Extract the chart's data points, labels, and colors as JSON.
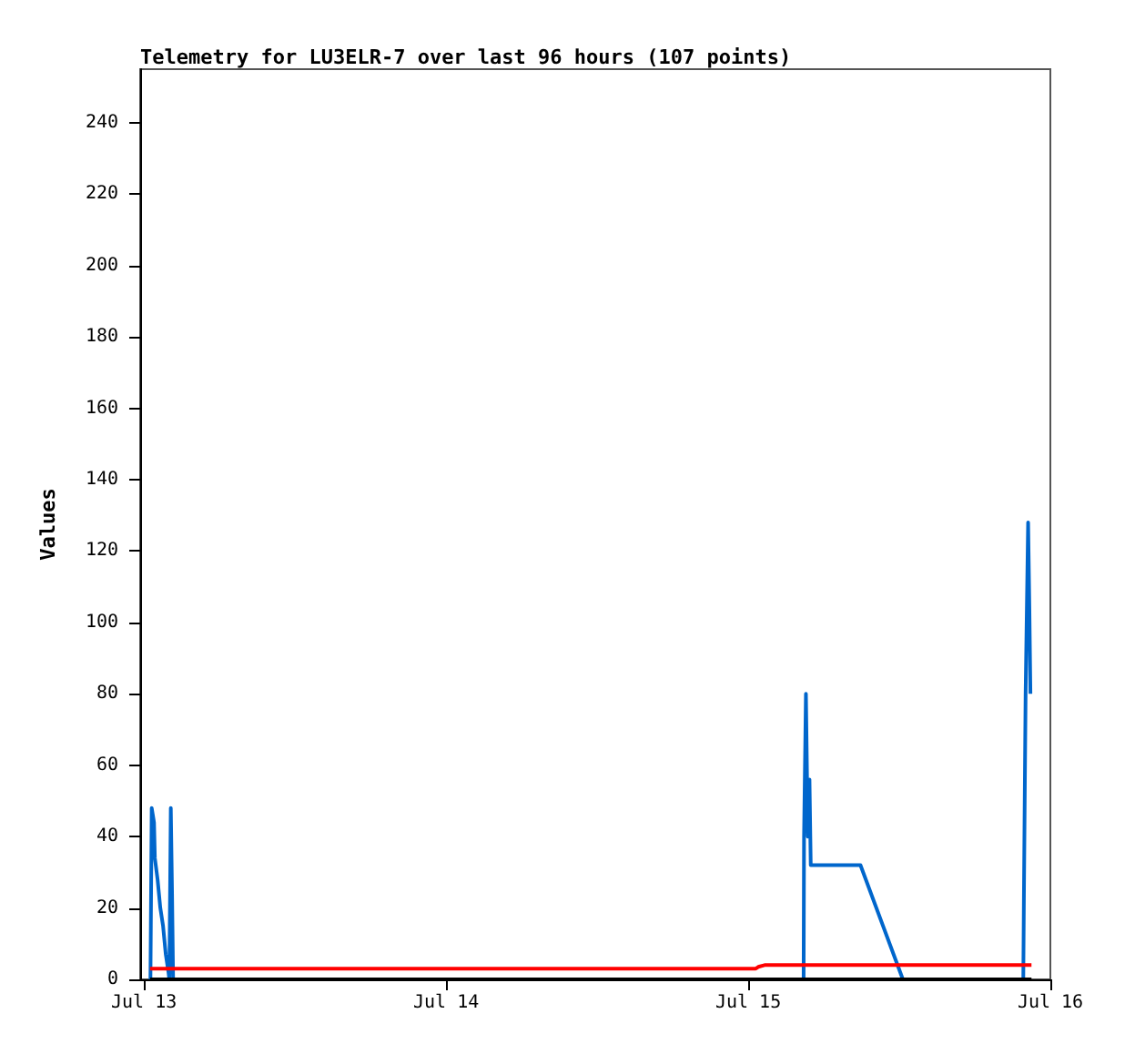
{
  "chart_data": {
    "type": "line",
    "title": "Telemetry for LU3ELR-7 over last 96 hours (107 points)",
    "ylabel": "Values",
    "xlim": [
      "--07-12T23:42",
      "--07-16T00:00"
    ],
    "xticks": [
      {
        "value": "--07-13",
        "label": "Jul 13"
      },
      {
        "value": "--07-14",
        "label": "Jul 14"
      },
      {
        "value": "--07-15",
        "label": "Jul 15"
      },
      {
        "value": "--07-16",
        "label": "Jul 16"
      }
    ],
    "ylim": [
      0,
      255
    ],
    "yticks": [
      0,
      20,
      40,
      60,
      80,
      100,
      120,
      140,
      160,
      180,
      200,
      220,
      240
    ],
    "grid": false,
    "marker": "none",
    "line_style": "solid",
    "series": [
      {
        "color": "#0066cc",
        "x": [
          "--07-13T00:31",
          "--07-13T00:37",
          "--07-13T00:48",
          "--07-13T00:52",
          "--07-13T01:05",
          "--07-13T01:18",
          "--07-13T01:31",
          "--07-13T01:44",
          "--07-13T01:57",
          "--07-13T02:01",
          "--07-13T02:08",
          "--07-13T02:14",
          "--07-13T02:19",
          "--07-15T04:24",
          "--07-15T04:26",
          "--07-15T04:35",
          "--07-15T04:44",
          "--07-15T04:52",
          "--07-15T04:58",
          "--07-15T08:55",
          "--07-15T12:17",
          "--07-15T21:51",
          "--07-15T21:54",
          "--07-15T22:02",
          "--07-15T22:14",
          "--07-15T22:20",
          "--07-15T22:25"
        ],
        "values": [
          0,
          48,
          44,
          34,
          28,
          20,
          15,
          7,
          2,
          0,
          48,
          24,
          0,
          0,
          40,
          80,
          40,
          56,
          32,
          32,
          0,
          0,
          24,
          80,
          128,
          104,
          80
        ]
      },
      {
        "color": "#ff0000",
        "x": [
          "--07-13T00:29",
          "--07-15T00:36",
          "--07-15T00:48",
          "--07-15T01:18",
          "--07-15T22:30"
        ],
        "values": [
          3,
          3,
          3.5,
          4,
          4
        ]
      },
      {
        "color": "#000000",
        "x": [
          "--07-13T00:29",
          "--07-15T22:30"
        ],
        "values": [
          0,
          0
        ]
      }
    ]
  }
}
